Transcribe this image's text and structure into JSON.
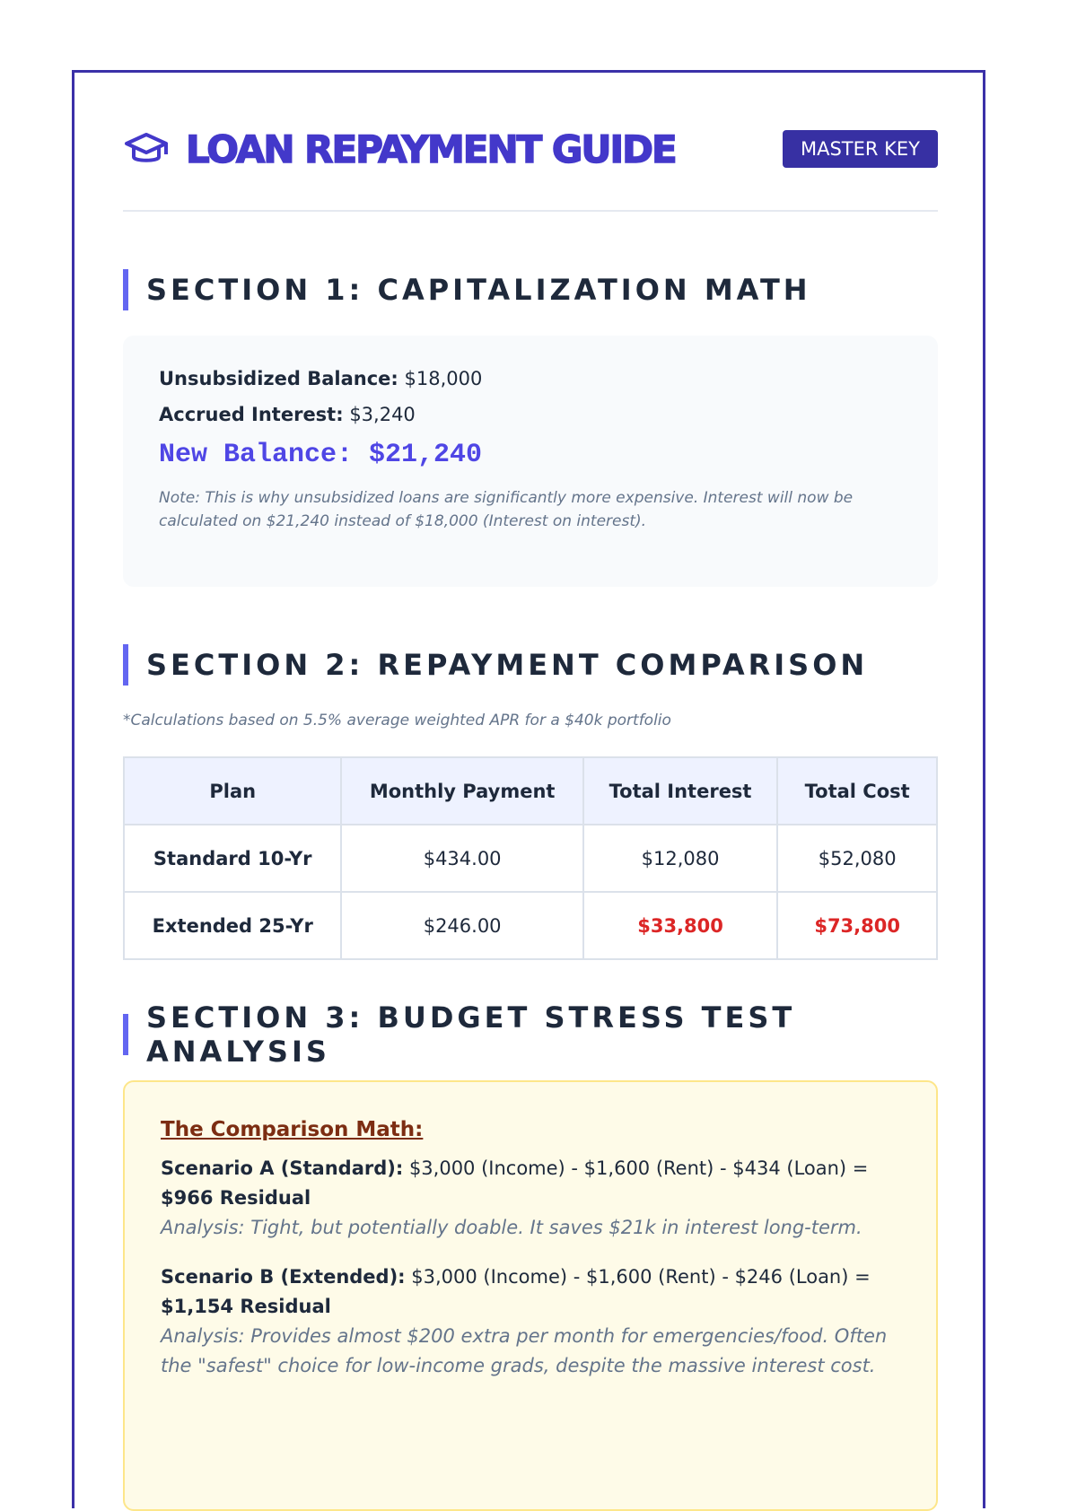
{
  "header": {
    "title": "LOAN REPAYMENT GUIDE",
    "badge": "MASTER KEY",
    "icon": "graduation-cap-icon"
  },
  "section1": {
    "heading": "SECTION 1: CAPITALIZATION MATH",
    "unsub_label": "Unsubsidized Balance:",
    "unsub_value": "$18,000",
    "accrued_label": "Accrued Interest:",
    "accrued_value": "$3,240",
    "new_balance": "New Balance: $21,240",
    "note": "Note: This is why unsubsidized loans are significantly more expensive. Interest will now be calculated on $21,240 instead of $18,000 (Interest on interest)."
  },
  "section2": {
    "heading": "SECTION 2: REPAYMENT COMPARISON",
    "footnote": "*Calculations based on 5.5% average weighted APR for a $40k portfolio",
    "columns": [
      "Plan",
      "Monthly Payment",
      "Total Interest",
      "Total Cost"
    ],
    "rows": [
      [
        "Standard 10-Yr",
        "$434.00",
        "$12,080",
        "$52,080"
      ],
      [
        "Extended 25-Yr",
        "$246.00",
        "$33,800",
        "$73,800"
      ]
    ],
    "highlight_color": "#dc2626"
  },
  "section3": {
    "heading": "SECTION 3: BUDGET STRESS TEST ANALYSIS",
    "box_title": "The Comparison Math:",
    "a_label": "Scenario A (Standard):",
    "a_formula": " $3,000 (Income) - $1,600 (Rent) - $434 (Loan) = ",
    "a_result": "$966 Residual",
    "a_analysis": "Analysis: Tight, but potentially doable. It saves $21k in interest long-term.",
    "b_label": "Scenario B (Extended):",
    "b_formula": " $3,000 (Income) - $1,600 (Rent) - $246 (Loan) = ",
    "b_result": "$1,154 Residual",
    "b_analysis": "Analysis: Provides almost $200 extra per month for emergencies/food. Often the \"safest\" choice for low-income grads, despite the massive interest cost."
  },
  "colors": {
    "accent": "#4338ca",
    "badge": "#3730a3",
    "section_bar": "#6366f1"
  }
}
